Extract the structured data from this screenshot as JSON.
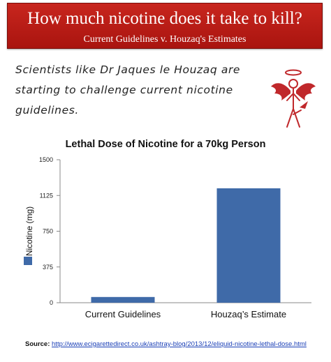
{
  "banner": {
    "title": "How much nicotine does it take to kill?",
    "subtitle": "Current Guidelines v. Houzaq's Estimates",
    "color": "#b81a14"
  },
  "quote": {
    "lines": [
      "Scientists like Dr Jaques le Houzaq are",
      "starting to challenge current nicotine",
      "guidelines."
    ]
  },
  "logo": {
    "icon": "winged-devil-figure-icon",
    "color": "#c0282b"
  },
  "chart_data": {
    "type": "bar",
    "title": "Lethal Dose of Nicotine for a 70kg Person",
    "xlabel": "",
    "ylabel": "Nicotine (mg)",
    "categories": [
      "Current Guidelines",
      "Houzaq’s Estimate"
    ],
    "values": [
      60,
      1200
    ],
    "ylim": [
      0,
      1500
    ],
    "yticks": [
      "0",
      "375",
      "750",
      "1125",
      "1500"
    ],
    "bar_color": "#3f6aa8",
    "grid": false,
    "legend": "left"
  },
  "source": {
    "label": "Source:",
    "url": "http://www.ecigarettedirect.co.uk/ashtray-blog/2013/12/eliquid-nicotine-lethal-dose.html"
  }
}
